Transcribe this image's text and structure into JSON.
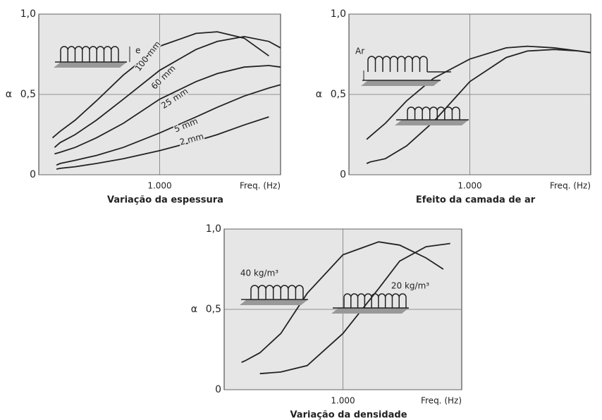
{
  "chart_data": [
    {
      "type": "line",
      "title": "Variação da espessura",
      "xlabel": "Freq. (Hz)",
      "ylabel": "α",
      "xscale": "log",
      "xlim": [
        100,
        10000
      ],
      "xticks": [
        {
          "value": 1000,
          "label": "1.000"
        }
      ],
      "ylim": [
        0,
        1
      ],
      "yticks": [
        0,
        {
          "value": 0.5,
          "label": "0,5"
        },
        {
          "value": 1,
          "label": "1,0"
        }
      ],
      "grid": true,
      "annotations": [
        "e"
      ],
      "series": [
        {
          "name": "100 mm",
          "color": "#222222",
          "x": [
            130,
            150,
            200,
            300,
            500,
            1000,
            2000,
            3000,
            5000,
            8000
          ],
          "values": [
            0.23,
            0.27,
            0.34,
            0.46,
            0.62,
            0.8,
            0.88,
            0.89,
            0.85,
            0.74
          ]
        },
        {
          "name": "60 mm",
          "color": "#222222",
          "x": [
            135,
            150,
            200,
            300,
            500,
            1000,
            2000,
            3000,
            5000,
            8000,
            10000
          ],
          "values": [
            0.17,
            0.2,
            0.25,
            0.34,
            0.47,
            0.65,
            0.78,
            0.83,
            0.86,
            0.83,
            0.79
          ]
        },
        {
          "name": "25 mm",
          "color": "#222222",
          "x": [
            135,
            150,
            200,
            300,
            500,
            1000,
            2000,
            3000,
            5000,
            8000,
            10000
          ],
          "values": [
            0.13,
            0.14,
            0.17,
            0.23,
            0.32,
            0.47,
            0.58,
            0.63,
            0.67,
            0.68,
            0.67
          ]
        },
        {
          "name": "5 mm",
          "color": "#222222",
          "x": [
            140,
            150,
            200,
            300,
            500,
            1000,
            2000,
            3000,
            5000,
            8000,
            10000
          ],
          "values": [
            0.06,
            0.07,
            0.09,
            0.12,
            0.17,
            0.26,
            0.36,
            0.42,
            0.49,
            0.54,
            0.56
          ]
        },
        {
          "name": "2 mm",
          "color": "#222222",
          "x": [
            140,
            150,
            200,
            300,
            500,
            1000,
            2000,
            3000,
            5000,
            8000
          ],
          "values": [
            0.035,
            0.04,
            0.05,
            0.07,
            0.1,
            0.15,
            0.21,
            0.25,
            0.31,
            0.36
          ]
        }
      ]
    },
    {
      "type": "line",
      "title": "Efeito da camada de ar",
      "xlabel": "Freq. (Hz)",
      "ylabel": "α",
      "xscale": "log",
      "xlim": [
        100,
        10000
      ],
      "xticks": [
        {
          "value": 1000,
          "label": "1.000"
        }
      ],
      "ylim": [
        0,
        1
      ],
      "yticks": [
        0,
        {
          "value": 0.5,
          "label": "0,5"
        },
        {
          "value": 1,
          "label": "1,0"
        }
      ],
      "grid": true,
      "annotations": [
        "Ar"
      ],
      "series": [
        {
          "color": "#222222",
          "x": [
            140,
            150,
            200,
            300,
            500,
            1000,
            2000,
            3000,
            5000,
            8000,
            10000
          ],
          "values": [
            0.22,
            0.24,
            0.32,
            0.46,
            0.6,
            0.72,
            0.79,
            0.8,
            0.79,
            0.77,
            0.76
          ]
        },
        {
          "color": "#222222",
          "x": [
            140,
            150,
            200,
            300,
            500,
            1000,
            2000,
            3000,
            5000,
            8000,
            10000
          ],
          "values": [
            0.07,
            0.08,
            0.1,
            0.18,
            0.33,
            0.58,
            0.73,
            0.77,
            0.78,
            0.77,
            0.76
          ]
        }
      ]
    },
    {
      "type": "line",
      "title": "Variação da densidade",
      "xlabel": "Freq. (Hz)",
      "ylabel": "α",
      "xscale": "log",
      "xlim": [
        100,
        10000
      ],
      "xticks": [
        {
          "value": 1000,
          "label": "1.000"
        }
      ],
      "ylim": [
        0,
        1
      ],
      "yticks": [
        0,
        {
          "value": 0.5,
          "label": "0,5"
        },
        {
          "value": 1,
          "label": "1,0"
        }
      ],
      "grid": true,
      "series": [
        {
          "name": "40 kg/m³",
          "color": "#222222",
          "x": [
            140,
            150,
            200,
            300,
            500,
            1000,
            2000,
            3000,
            5000,
            7000
          ],
          "values": [
            0.17,
            0.18,
            0.23,
            0.35,
            0.6,
            0.84,
            0.92,
            0.9,
            0.82,
            0.75
          ]
        },
        {
          "name": "20 kg/m³",
          "color": "#222222",
          "x": [
            200,
            300,
            500,
            1000,
            2000,
            3000,
            5000,
            8000
          ],
          "values": [
            0.1,
            0.11,
            0.15,
            0.35,
            0.63,
            0.8,
            0.89,
            0.91
          ]
        }
      ]
    }
  ]
}
